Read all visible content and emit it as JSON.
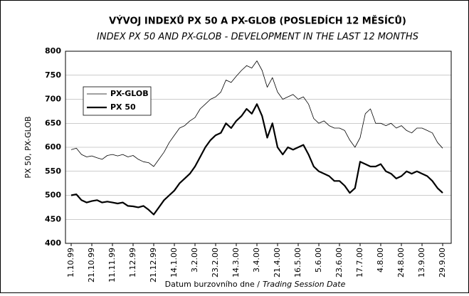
{
  "chart_data": {
    "type": "line",
    "title": "VÝVOJ INDEXŮ PX 50 A PX-GLOB (POSLEDÍCH 12 MĚSÍCŮ)",
    "subtitle": "INDEX PX 50 AND PX-GLOB - DEVELOPMENT IN THE LAST 12 MONTHS",
    "y_label": "PX 50, PX-GLOB",
    "x_label": "Datum burzovního dne /",
    "x_label_en": "Trading Session Date",
    "categories": [
      "1.10.99",
      null,
      null,
      null,
      "21.10.99",
      null,
      null,
      null,
      "11.11.99",
      null,
      null,
      null,
      "1.12.99",
      null,
      null,
      null,
      "21.12.99",
      null,
      null,
      null,
      "14.1.00",
      null,
      null,
      null,
      "3.2.00",
      null,
      null,
      null,
      "23.2.00",
      null,
      null,
      null,
      "14.3.00",
      null,
      null,
      null,
      "3.4.00",
      null,
      null,
      null,
      "21.4.00",
      null,
      null,
      null,
      "16.5.00",
      null,
      null,
      null,
      "5.6.00",
      null,
      null,
      null,
      "23.6.00",
      null,
      null,
      null,
      "17.7.00",
      null,
      null,
      null,
      "4.8.00",
      null,
      null,
      null,
      "24.8.00",
      null,
      null,
      null,
      "13.9.00",
      null,
      null,
      null,
      "29.9.00"
    ],
    "series": [
      {
        "name": "PX-GLOB",
        "color": "#000000",
        "width": 0.8,
        "values": [
          595,
          598,
          585,
          580,
          582,
          578,
          575,
          583,
          585,
          582,
          585,
          580,
          583,
          575,
          570,
          568,
          560,
          575,
          590,
          610,
          625,
          640,
          645,
          655,
          662,
          680,
          690,
          700,
          705,
          715,
          740,
          735,
          748,
          760,
          770,
          765,
          780,
          760,
          725,
          745,
          715,
          700,
          705,
          710,
          700,
          705,
          690,
          660,
          650,
          655,
          645,
          640,
          640,
          635,
          615,
          600,
          620,
          670,
          680,
          650,
          650,
          645,
          650,
          640,
          645,
          635,
          630,
          640,
          640,
          635,
          630,
          610,
          598
        ]
      },
      {
        "name": "PX 50",
        "color": "#000000",
        "width": 2.2,
        "values": [
          500,
          502,
          490,
          485,
          488,
          490,
          485,
          487,
          485,
          483,
          485,
          478,
          477,
          475,
          478,
          470,
          460,
          475,
          490,
          500,
          510,
          525,
          535,
          545,
          560,
          580,
          600,
          615,
          625,
          630,
          650,
          640,
          655,
          665,
          680,
          670,
          690,
          665,
          620,
          650,
          600,
          585,
          600,
          595,
          600,
          605,
          585,
          560,
          550,
          545,
          540,
          530,
          530,
          520,
          505,
          515,
          570,
          565,
          560,
          560,
          565,
          550,
          545,
          535,
          540,
          550,
          545,
          550,
          545,
          540,
          530,
          515,
          505
        ]
      }
    ],
    "ylim": [
      400,
      800
    ],
    "yticks": [
      400,
      450,
      500,
      550,
      600,
      650,
      700,
      750,
      800
    ],
    "grid": true,
    "legend": "upper-left"
  }
}
